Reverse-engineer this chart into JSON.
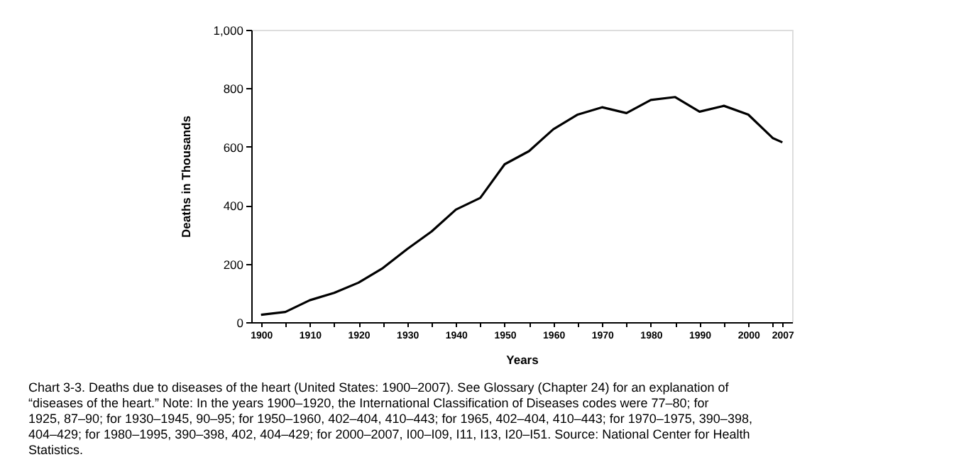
{
  "chart_data": {
    "type": "line",
    "xlabel": "Years",
    "ylabel": "Deaths in Thousands",
    "x": [
      1900,
      1905,
      1910,
      1915,
      1920,
      1925,
      1930,
      1935,
      1940,
      1945,
      1950,
      1955,
      1960,
      1965,
      1970,
      1975,
      1980,
      1985,
      1990,
      1995,
      2000,
      2005,
      2007
    ],
    "series": [
      {
        "color": "#000000",
        "values": [
          25,
          35,
          75,
          100,
          135,
          185,
          250,
          310,
          385,
          425,
          540,
          585,
          660,
          710,
          735,
          715,
          760,
          770,
          720,
          740,
          710,
          630,
          615
        ]
      }
    ],
    "xlim": [
      1898,
      2009
    ],
    "xticks": [
      1900,
      {
        "value": 1905,
        "label": null
      },
      1910,
      {
        "value": 1915,
        "label": null
      },
      1920,
      {
        "value": 1925,
        "label": null
      },
      1930,
      {
        "value": 1935,
        "label": null
      },
      1940,
      {
        "value": 1945,
        "label": null
      },
      1950,
      {
        "value": 1955,
        "label": null
      },
      1960,
      {
        "value": 1965,
        "label": null
      },
      1970,
      {
        "value": 1975,
        "label": null
      },
      1980,
      {
        "value": 1985,
        "label": null
      },
      1990,
      {
        "value": 1995,
        "label": null
      },
      2000,
      {
        "value": 2005,
        "label": null
      },
      2007
    ],
    "ylim": [
      0,
      1000
    ],
    "yticks": [
      0,
      200,
      400,
      600,
      800,
      {
        "value": 1000,
        "label": "1,000"
      }
    ],
    "grid": false,
    "marker": "none",
    "line_style": "solid",
    "annotations": [
      "Chart 3-3. Deaths due to diseases of the heart (United States: 1900–2007). See Glossary (Chapter 24) for an explanation of “diseases of the heart.” Note: In the years 1900–1920, the International Classification of Diseases codes were 77–80; for 1925, 87–90; for 1930–1945, 90–95; for 1950–1960, 402–404, 410–443; for 1965, 402–404, 410–443; for 1970–1975, 390–398, 404–429; for 1980–1995, 390–398, 402, 404–429; for 2000–2007, I00–I09, I11, I13, I20–I51. Source: National Center for Health Statistics."
    ]
  }
}
